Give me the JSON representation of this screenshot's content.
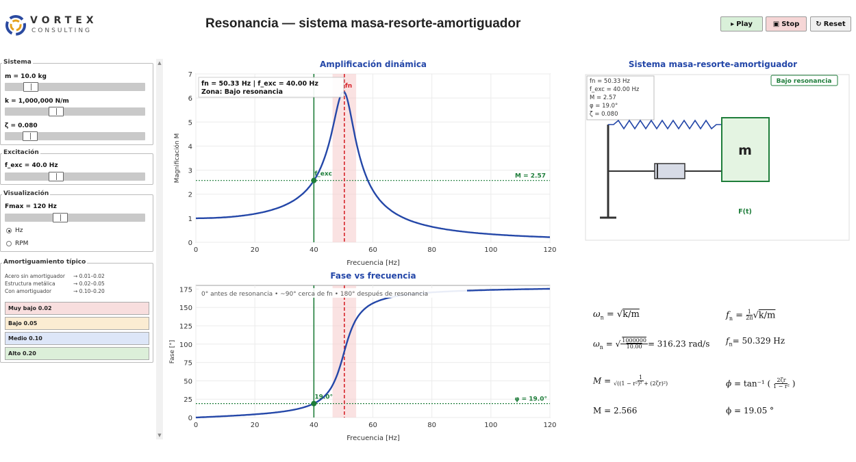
{
  "brand": {
    "name": "VORTEX",
    "sub": "CONSULTING"
  },
  "window_title": "Resonancia — sistema masa-resorte-amortiguador",
  "toolbar": {
    "play": "Play",
    "stop": "Stop",
    "reset": "Reset"
  },
  "sidebar": {
    "sistema": {
      "title": "Sistema",
      "m_label": "m = 10.0 kg",
      "k_label": "k = 1,000,000 N/m",
      "zeta_label": "ζ = 0.080",
      "m_level": 0.15,
      "k_level": 0.35,
      "zeta_level": 0.14
    },
    "excitacion": {
      "title": "Excitación",
      "fexc_label": "f_exc = 40.0 Hz",
      "fexc_level": 0.35
    },
    "visualizacion": {
      "title": "Visualización",
      "fmax_label": "Fmax = 120 Hz",
      "fmax_level": 0.38,
      "units": [
        {
          "label": "Hz",
          "selected": true
        },
        {
          "label": "RPM",
          "selected": false
        }
      ]
    },
    "amortiguamiento": {
      "title": "Amortiguamiento típico",
      "refs": [
        {
          "name": "Acero sin amortiguador",
          "range": "→ 0.01–0.02"
        },
        {
          "name": "Estructura metálica",
          "range": "→ 0.02–0.05"
        },
        {
          "name": "Con amortiguador",
          "range": "→ 0.10–0.20"
        }
      ],
      "presets": [
        {
          "label": "Muy bajo  0.02",
          "color": "#f8dede"
        },
        {
          "label": "Bajo  0.05",
          "color": "#fbecd2"
        },
        {
          "label": "Medio  0.10",
          "color": "#dde6f8"
        },
        {
          "label": "Alto  0.20",
          "color": "#dcefd9"
        }
      ]
    }
  },
  "colors": {
    "curve": "#2447a8",
    "exc": "#1e7d3a",
    "fn": "#d6232a",
    "title": "#2447a8"
  },
  "chart_data": [
    {
      "type": "line",
      "title": "Amplificación dinámica",
      "xlabel": "Frecuencia [Hz]",
      "ylabel": "Magnificación M",
      "xlim": [
        0,
        120
      ],
      "ylim": [
        0,
        7
      ],
      "xticks": [
        "0",
        "20",
        "40",
        "60",
        "80",
        "100",
        "120"
      ],
      "yticks": [
        "0",
        "1",
        "2",
        "3",
        "4",
        "5",
        "6",
        "7"
      ],
      "fn": 50.33,
      "zeta": 0.08,
      "f_exc": 40.0,
      "M_exc": 2.57,
      "peak_clip": 6.25,
      "info_line1": "fn = 50.33 Hz   |   f_exc = 40.00 Hz",
      "info_line2": "Zona: Bajo resonancia",
      "exc_marker_label": "f_exc",
      "fn_marker_label": "fn",
      "hline_label": "M = 2.57"
    },
    {
      "type": "line",
      "title": "Fase vs frecuencia",
      "xlabel": "Frecuencia [Hz]",
      "ylabel": "Fase [°]",
      "xlim": [
        0,
        120
      ],
      "ylim": [
        0,
        180
      ],
      "xticks": [
        "0",
        "20",
        "40",
        "60",
        "80",
        "100",
        "120"
      ],
      "yticks": [
        "0",
        "25",
        "50",
        "75",
        "100",
        "125",
        "150",
        "175"
      ],
      "phi_exc": 19.0,
      "note": "0° antes de resonancia  •  ~90° cerca de fn  •  180° después de resonancia",
      "exc_marker_label": "19.0°",
      "hline_label": "φ = 19.0°"
    }
  ],
  "schematic": {
    "title": "Sistema masa-resorte-amortiguador",
    "info": [
      "fn = 50.33 Hz",
      "f_exc = 40.00 Hz",
      "M = 2.57",
      "φ = 19.0°",
      "ζ = 0.080"
    ],
    "badge": "Bajo resonancia",
    "mass_label": "m",
    "force_label": "F(t)"
  },
  "equations": {
    "omega_def_lhs": "ω",
    "omega_def_sub": "n",
    "omega_def_rhs": "k/m",
    "fn_def_lhs": "f",
    "fn_def_sub": "n",
    "omega_num": "1000000",
    "omega_den": "10.00",
    "omega_val": "= 316.23 rad/s",
    "fn_val": "= 50.329 Hz",
    "M_val": "M = 2.566",
    "phi_val": "ϕ = 19.05 °"
  }
}
